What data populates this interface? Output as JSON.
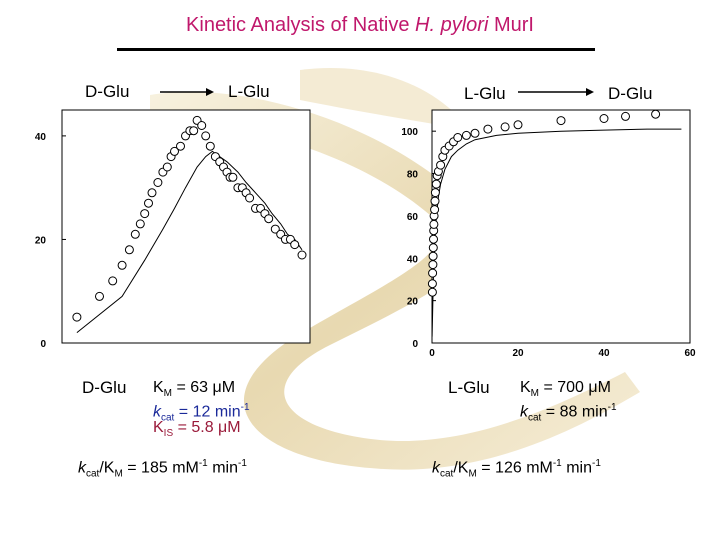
{
  "title": {
    "prefix": "Kinetic Analysis of Native ",
    "organism": "H. pylori",
    "suffix": " MurI"
  },
  "left_panel": {
    "reaction_from": "D-Glu",
    "reaction_to": "L-Glu",
    "substrate": "D-Glu",
    "km": {
      "sym": "K",
      "sub": "M",
      "value": " = 63 μM"
    },
    "kcat": {
      "sym": "k",
      "sub": "cat",
      "value": " = 12 min",
      "exp": "-1"
    },
    "kis": {
      "sym": "K",
      "sub": "IS",
      "value": " = 5.8 μM"
    },
    "efficiency": {
      "sym1": "k",
      "sub1": "cat",
      "mid": "/K",
      "sub2": "M",
      "value": " = 185 mM",
      "exp1": "-1",
      "unit2": " min",
      "exp2": "-1"
    }
  },
  "right_panel": {
    "reaction_from": "L-Glu",
    "reaction_to": "D-Glu",
    "substrate": "L-Glu",
    "km": {
      "sym": "K",
      "sub": "M",
      "value": " = 700 μM"
    },
    "kcat": {
      "sym": "k",
      "sub": "cat",
      "value": " = 88 min",
      "exp": "-1"
    },
    "efficiency": {
      "sym1": "k",
      "sub1": "cat",
      "mid": "/K",
      "sub2": "M",
      "value": " = 126 mM",
      "exp1": "-1",
      "unit2": " min",
      "exp2": "-1"
    }
  },
  "colors": {
    "title": "#c0186c",
    "kcat_left": "#1b2a9a",
    "kis_left": "#9a1a3a"
  },
  "chart_data": [
    {
      "type": "scatter",
      "title": "",
      "xlabel": "",
      "ylabel": "",
      "ylim": [
        0,
        45
      ],
      "y_ticks": [
        0,
        20,
        40
      ],
      "y_tick_labels": [
        "0",
        "20",
        "40"
      ],
      "grid": false,
      "points": [
        [
          0.005,
          5
        ],
        [
          0.01,
          9
        ],
        [
          0.015,
          12
        ],
        [
          0.02,
          15
        ],
        [
          0.025,
          18
        ],
        [
          0.03,
          21
        ],
        [
          0.035,
          23
        ],
        [
          0.04,
          25
        ],
        [
          0.045,
          27
        ],
        [
          0.05,
          29
        ],
        [
          0.06,
          31
        ],
        [
          0.07,
          33
        ],
        [
          0.08,
          34
        ],
        [
          0.09,
          36
        ],
        [
          0.1,
          37
        ],
        [
          0.12,
          38
        ],
        [
          0.14,
          40
        ],
        [
          0.16,
          41
        ],
        [
          0.18,
          41
        ],
        [
          0.2,
          43
        ],
        [
          0.23,
          42
        ],
        [
          0.26,
          40
        ],
        [
          0.3,
          38
        ],
        [
          0.35,
          36
        ],
        [
          0.4,
          35
        ],
        [
          0.45,
          34
        ],
        [
          0.5,
          33
        ],
        [
          0.55,
          32
        ],
        [
          0.6,
          32
        ],
        [
          0.7,
          30
        ],
        [
          0.8,
          30
        ],
        [
          0.9,
          29
        ],
        [
          1.0,
          28
        ],
        [
          1.2,
          26
        ],
        [
          1.4,
          26
        ],
        [
          1.6,
          25
        ],
        [
          1.8,
          24
        ],
        [
          2.2,
          22
        ],
        [
          2.6,
          21
        ],
        [
          3.0,
          20
        ],
        [
          3.5,
          20
        ],
        [
          4.0,
          19
        ],
        [
          5.0,
          17
        ]
      ],
      "fit_curve": [
        [
          0.005,
          2
        ],
        [
          0.02,
          9
        ],
        [
          0.04,
          16
        ],
        [
          0.07,
          22
        ],
        [
          0.1,
          26
        ],
        [
          0.14,
          30
        ],
        [
          0.2,
          34
        ],
        [
          0.26,
          36
        ],
        [
          0.32,
          37
        ],
        [
          0.4,
          36
        ],
        [
          0.5,
          35
        ],
        [
          0.7,
          33
        ],
        [
          0.9,
          31
        ],
        [
          1.2,
          29
        ],
        [
          1.6,
          27
        ],
        [
          2.0,
          25
        ],
        [
          2.6,
          23
        ],
        [
          3.2,
          21
        ],
        [
          4.0,
          20
        ],
        [
          5.0,
          18
        ]
      ]
    },
    {
      "type": "scatter",
      "title": "",
      "xlabel": "",
      "ylabel": "",
      "ylim": [
        0,
        110
      ],
      "xlim": [
        0,
        60
      ],
      "y_ticks": [
        0,
        20,
        40,
        60,
        80,
        100
      ],
      "y_tick_labels": [
        "0",
        "20",
        "40",
        "60",
        "80",
        "100"
      ],
      "x_ticks": [
        0,
        20,
        40,
        60
      ],
      "x_tick_labels": [
        "0",
        "20",
        "40",
        "60"
      ],
      "grid": false,
      "points": [
        [
          0.1,
          24
        ],
        [
          0.1,
          28
        ],
        [
          0.15,
          33
        ],
        [
          0.2,
          37
        ],
        [
          0.25,
          41
        ],
        [
          0.3,
          45
        ],
        [
          0.35,
          49
        ],
        [
          0.4,
          53
        ],
        [
          0.45,
          56
        ],
        [
          0.5,
          60
        ],
        [
          0.6,
          63
        ],
        [
          0.7,
          67
        ],
        [
          0.8,
          71
        ],
        [
          1.0,
          75
        ],
        [
          1.2,
          79
        ],
        [
          1.5,
          81
        ],
        [
          2.0,
          84
        ],
        [
          2.5,
          88
        ],
        [
          3.0,
          91
        ],
        [
          4.0,
          93
        ],
        [
          5.0,
          95
        ],
        [
          6.0,
          97
        ],
        [
          8.0,
          98
        ],
        [
          10.0,
          99
        ],
        [
          13.0,
          101
        ],
        [
          17.0,
          102
        ],
        [
          20.0,
          103
        ],
        [
          30.0,
          105
        ],
        [
          40.0,
          106
        ],
        [
          45.0,
          107
        ],
        [
          52.0,
          108
        ]
      ],
      "fit_curve": [
        [
          0.02,
          3
        ],
        [
          0.3,
          29
        ],
        [
          0.6,
          46
        ],
        [
          1.0,
          59
        ],
        [
          1.5,
          69
        ],
        [
          2.0,
          75
        ],
        [
          3.0,
          82
        ],
        [
          4.5,
          88
        ],
        [
          6.0,
          91
        ],
        [
          8.0,
          94
        ],
        [
          10.0,
          96
        ],
        [
          15.0,
          98
        ],
        [
          20.0,
          99
        ],
        [
          30.0,
          100
        ],
        [
          40.0,
          100.5
        ],
        [
          50.0,
          101
        ],
        [
          58.0,
          101
        ]
      ]
    }
  ]
}
